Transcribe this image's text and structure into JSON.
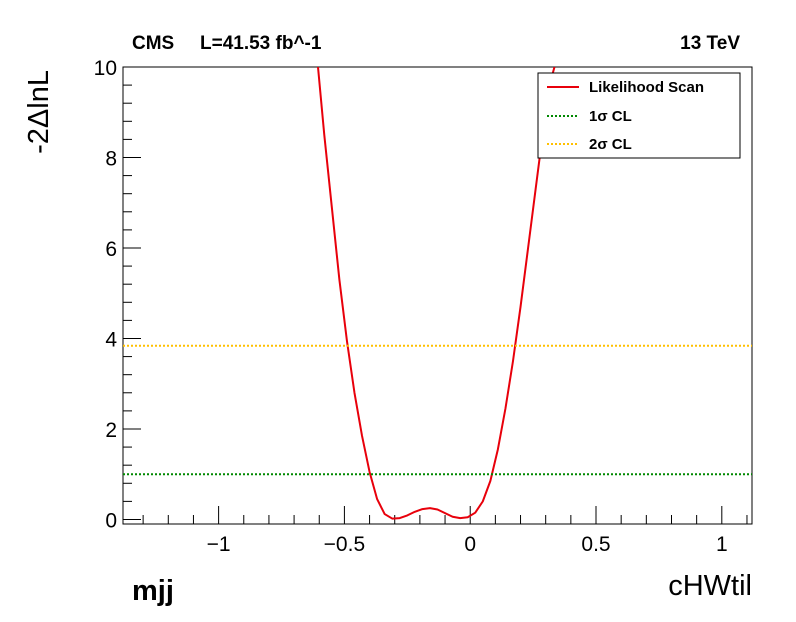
{
  "header": {
    "experiment": "CMS",
    "luminosity": "L=41.53 fb^-1",
    "energy": "13 TeV"
  },
  "corner_label": "mjj",
  "chart_data": {
    "type": "line",
    "xlabel": "cHWtil",
    "ylabel": "-2ΔlnL",
    "xlim": [
      -1.38,
      1.12
    ],
    "ylim": [
      -0.1,
      10
    ],
    "x_ticks": [
      -1,
      -0.5,
      0,
      0.5,
      1
    ],
    "x_tick_labels": [
      "−1",
      "−0.5",
      "0",
      "0.5",
      "1"
    ],
    "y_ticks": [
      0,
      2,
      4,
      6,
      8,
      10
    ],
    "y_tick_labels": [
      "0",
      "2",
      "4",
      "6",
      "8",
      "10"
    ],
    "grid": false,
    "legend_position": "top-right",
    "series": [
      {
        "name": "Likelihood Scan",
        "color": "#e8000b",
        "style": "solid",
        "x": [
          -0.605,
          -0.58,
          -0.55,
          -0.52,
          -0.49,
          -0.46,
          -0.43,
          -0.4,
          -0.37,
          -0.34,
          -0.31,
          -0.28,
          -0.25,
          -0.22,
          -0.19,
          -0.16,
          -0.13,
          -0.1,
          -0.07,
          -0.04,
          -0.01,
          0.02,
          0.05,
          0.08,
          0.11,
          0.14,
          0.17,
          0.2,
          0.23,
          0.26,
          0.29,
          0.32,
          0.335
        ],
        "y": [
          10.0,
          8.5,
          6.9,
          5.3,
          3.95,
          2.8,
          1.85,
          1.05,
          0.45,
          0.12,
          0.02,
          0.03,
          0.09,
          0.17,
          0.23,
          0.25,
          0.22,
          0.14,
          0.06,
          0.03,
          0.05,
          0.15,
          0.4,
          0.85,
          1.55,
          2.45,
          3.5,
          4.7,
          6.0,
          7.3,
          8.6,
          9.7,
          10.0
        ]
      },
      {
        "name": "1σ CL",
        "color": "#008800",
        "style": "dotted",
        "x": [
          -1.38,
          1.12
        ],
        "y": [
          1.0,
          1.0
        ]
      },
      {
        "name": "2σ CL",
        "color": "#ffc000",
        "style": "dotted",
        "x": [
          -1.38,
          1.12
        ],
        "y": [
          3.84,
          3.84
        ]
      }
    ]
  }
}
